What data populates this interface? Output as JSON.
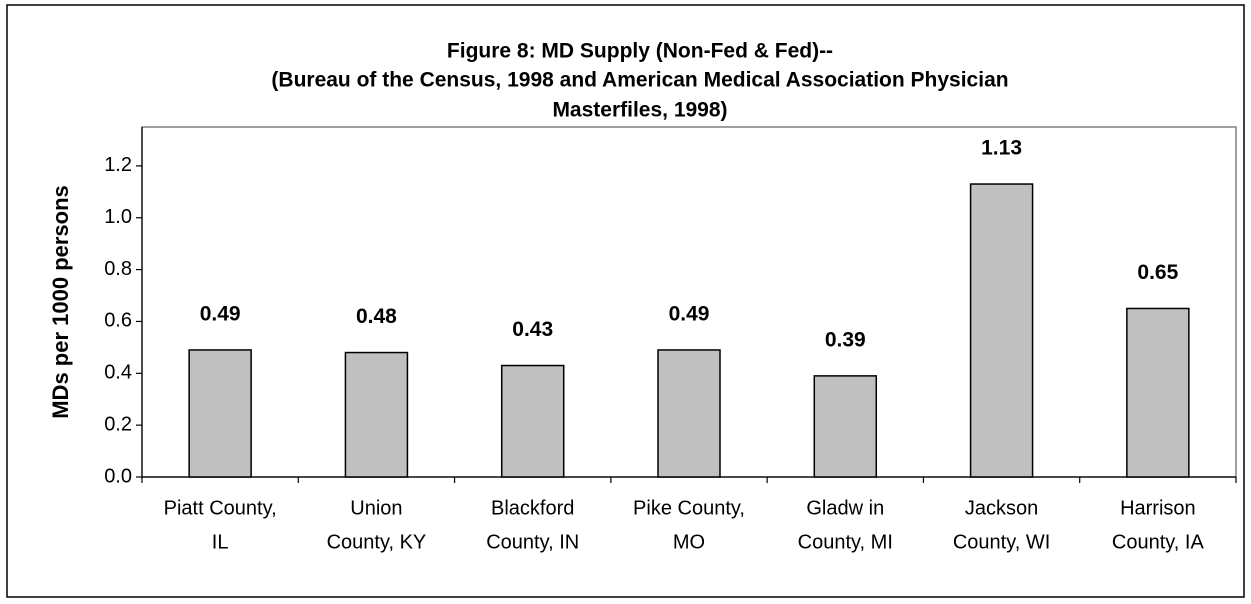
{
  "chart_data": {
    "type": "bar",
    "title": [
      "Figure 8: MD Supply (Non-Fed & Fed)--",
      "(Bureau of the Census, 1998 and American Medical Association Physician",
      "Masterfiles, 1998)"
    ],
    "y_label": "MDs per 1000 persons",
    "categories": [
      [
        "Piatt County,",
        "IL"
      ],
      [
        "Union",
        "County, KY"
      ],
      [
        "Blackford",
        "County, IN"
      ],
      [
        "Pike County,",
        "MO"
      ],
      [
        "Gladw in",
        "County, MI"
      ],
      [
        "Jackson",
        "County, WI"
      ],
      [
        "Harrison",
        "County, IA"
      ]
    ],
    "values": [
      0.49,
      0.48,
      0.43,
      0.49,
      0.39,
      1.13,
      0.65
    ],
    "color": "#c0c0c0",
    "ylim": [
      0,
      1.35
    ],
    "yticks": [
      {
        "value": 0,
        "label": "0.0"
      },
      0.2,
      0.4,
      0.6,
      0.8,
      {
        "value": 1,
        "label": "1.0"
      },
      1.2
    ]
  }
}
